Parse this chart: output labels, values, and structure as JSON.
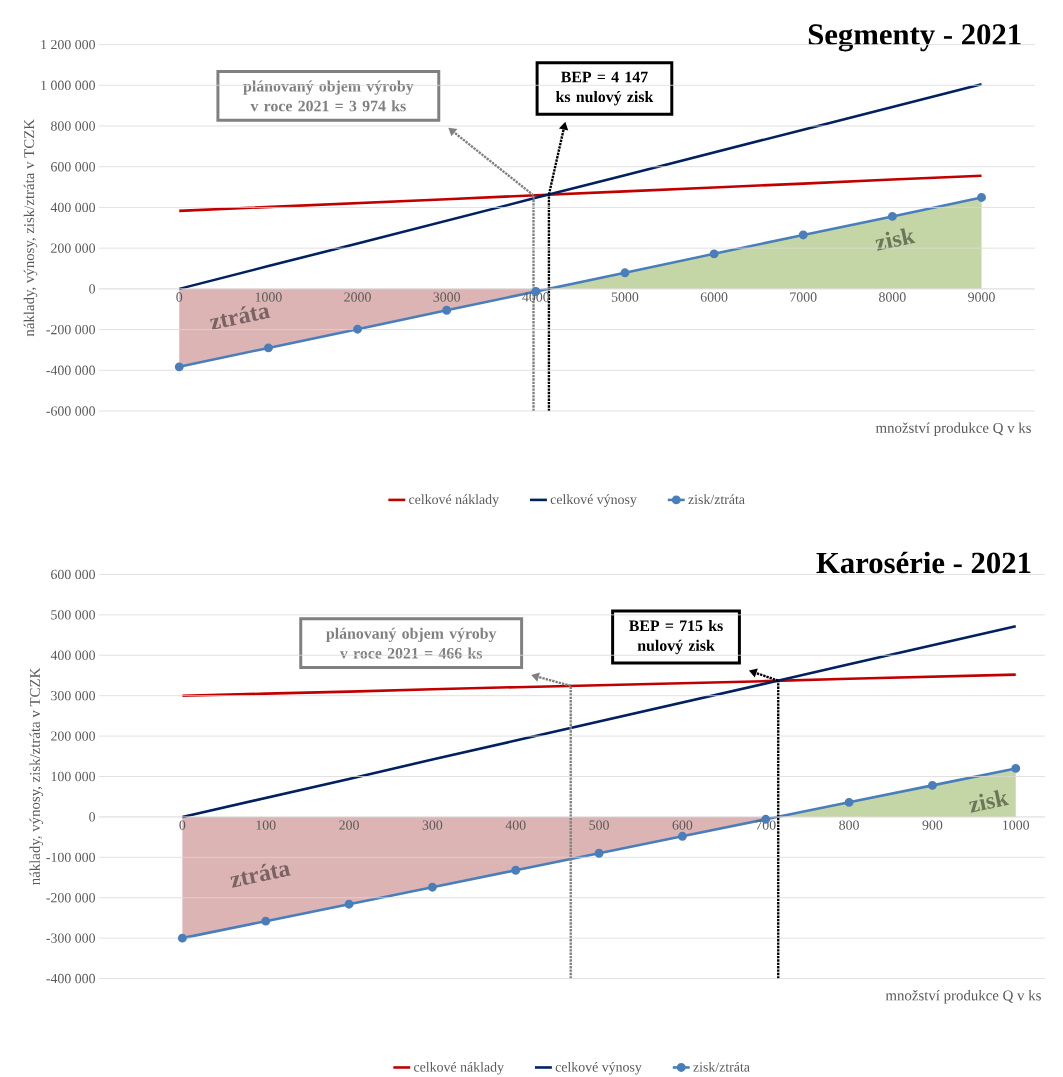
{
  "chart_data": [
    {
      "type": "line",
      "title": "Segmenty - 2021",
      "xlabel": "množství produkce Q v ks",
      "ylabel": "náklady,  výnosy,  zisk/ztráta v TCZK",
      "x": [
        0,
        1000,
        2000,
        3000,
        4000,
        5000,
        6000,
        7000,
        8000,
        9000
      ],
      "series": [
        {
          "name": "celkové náklady",
          "color": "#c00000",
          "marker": "none",
          "values": [
            383000,
            402000,
            421000,
            440000,
            460000,
            479000,
            498000,
            517000,
            537000,
            556000
          ]
        },
        {
          "name": "celkové výnosy",
          "color": "#002060",
          "marker": "none",
          "values": [
            0,
            112000,
            223000,
            335000,
            447000,
            558000,
            670000,
            782000,
            893000,
            1005000
          ]
        },
        {
          "name": "zisk/ztráta",
          "color": "#4a7ebb",
          "marker": "circle",
          "values": [
            -383000,
            -290000,
            -198000,
            -105000,
            -13000,
            79000,
            172000,
            265000,
            356000,
            449000
          ]
        },
        {
          "type": "area",
          "color": "#dcb4b4",
          "x": [
            0,
            1000,
            2000,
            3000,
            4000,
            4147
          ],
          "values": [
            -383000,
            -290000,
            -198000,
            -105000,
            -13000,
            0
          ]
        },
        {
          "type": "area",
          "color": "#c5d6a6",
          "x": [
            4147,
            5000,
            6000,
            7000,
            8000,
            9000
          ],
          "values": [
            0,
            79000,
            172000,
            265000,
            356000,
            449000
          ]
        }
      ],
      "xlim": [
        -900,
        9600
      ],
      "xticks": [
        0,
        1000,
        2000,
        3000,
        4000,
        5000,
        6000,
        7000,
        8000,
        9000
      ],
      "ylim": [
        -600000,
        1200000
      ],
      "yticks": [
        {
          "value": -600000,
          "label": "-600 000"
        },
        {
          "value": -400000,
          "label": "-400 000"
        },
        {
          "value": -200000,
          "label": "-200 000"
        },
        0,
        {
          "value": 200000,
          "label": "200 000"
        },
        {
          "value": 400000,
          "label": "400 000"
        },
        {
          "value": 600000,
          "label": "600 000"
        },
        {
          "value": 800000,
          "label": "800 000"
        },
        {
          "value": 1000000,
          "label": "1 000 000"
        },
        {
          "value": 1200000,
          "label": "1 200 000"
        }
      ],
      "ref_lines": [
        {
          "axis": "x",
          "value": 3974,
          "color": "#808080",
          "line_style": "dotted"
        },
        {
          "axis": "x",
          "value": 4147,
          "color": "#000000",
          "line_style": "dotted"
        }
      ],
      "annotations": [
        "ztráta",
        "zisk",
        "plánovaný objem výroby v roce 2021 = 3 974 ks",
        "BEP = 4 147 ks nulový zisk"
      ],
      "grid": "y",
      "legend": "bottom"
    },
    {
      "type": "line",
      "title": "Karosérie - 2021",
      "xlabel": "množství produkce Q v ks",
      "ylabel": "náklady,  výnosy,  zisk/ztráta v TCZK",
      "x": [
        0,
        100,
        200,
        300,
        400,
        500,
        600,
        700,
        800,
        900,
        1000
      ],
      "series": [
        {
          "name": "celkové náklady",
          "color": "#c00000",
          "marker": "none",
          "values": [
            300000,
            305000,
            310000,
            316000,
            321000,
            326000,
            331000,
            336000,
            342000,
            347000,
            352000
          ]
        },
        {
          "name": "celkové výnosy",
          "color": "#002060",
          "marker": "none",
          "values": [
            0,
            47000,
            94000,
            142000,
            189000,
            236000,
            283000,
            330000,
            378000,
            425000,
            472000
          ]
        },
        {
          "name": "zisk/ztráta",
          "color": "#4a7ebb",
          "marker": "circle",
          "values": [
            -300000,
            -258000,
            -216000,
            -174000,
            -132000,
            -90000,
            -48000,
            -6000,
            36000,
            78000,
            120000
          ]
        },
        {
          "type": "area",
          "color": "#dcb4b4",
          "x": [
            0,
            100,
            200,
            300,
            400,
            500,
            600,
            700,
            715
          ],
          "values": [
            -300000,
            -258000,
            -216000,
            -174000,
            -132000,
            -90000,
            -48000,
            -6000,
            0
          ]
        },
        {
          "type": "area",
          "color": "#c5d6a6",
          "x": [
            715,
            800,
            900,
            1000
          ],
          "values": [
            0,
            36000,
            78000,
            120000
          ]
        }
      ],
      "xlim": [
        -100,
        1035
      ],
      "xticks": [
        0,
        100,
        200,
        300,
        400,
        500,
        600,
        700,
        800,
        900,
        1000
      ],
      "ylim": [
        -400000,
        600000
      ],
      "yticks": [
        {
          "value": -400000,
          "label": "-400 000"
        },
        {
          "value": -300000,
          "label": "-300 000"
        },
        {
          "value": -200000,
          "label": "-200 000"
        },
        {
          "value": -100000,
          "label": "-100 000"
        },
        0,
        {
          "value": 100000,
          "label": "100 000"
        },
        {
          "value": 200000,
          "label": "200 000"
        },
        {
          "value": 300000,
          "label": "300 000"
        },
        {
          "value": 400000,
          "label": "400 000"
        },
        {
          "value": 500000,
          "label": "500 000"
        },
        {
          "value": 600000,
          "label": "600 000"
        }
      ],
      "ref_lines": [
        {
          "axis": "x",
          "value": 466,
          "color": "#808080",
          "line_style": "dotted"
        },
        {
          "axis": "x",
          "value": 715,
          "color": "#000000",
          "line_style": "dotted"
        }
      ],
      "annotations": [
        "ztráta",
        "zisk",
        "plánovaný objem výroby v roce 2021 = 466 ks",
        "BEP = 715 ks nulový zisk"
      ],
      "grid": "y",
      "legend": "bottom"
    }
  ]
}
